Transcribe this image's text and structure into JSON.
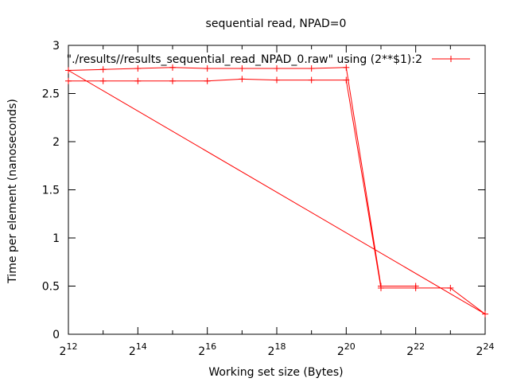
{
  "chart_data": {
    "type": "line",
    "title": "sequential read, NPAD=0",
    "xlabel": "Working set size (Bytes)",
    "ylabel": "Time per element (nanoseconds)",
    "xscale": "log2",
    "xlim_exp": [
      12,
      24
    ],
    "ylim": [
      0,
      3
    ],
    "x_tick_base": "2",
    "x_tick_exponents": [
      "12",
      "14",
      "16",
      "18",
      "20",
      "22",
      "24"
    ],
    "y_ticks": [
      "0",
      "0.5",
      "1",
      "1.5",
      "2",
      "2.5",
      "3"
    ],
    "grid": false,
    "legend_position": "top-right",
    "series": [
      {
        "name": "\"./results//results_sequential_read_NPAD_0.raw\" using (2**$1):2",
        "color": "#ff0000",
        "x_exp": [
          12,
          13,
          14,
          15,
          16,
          17,
          18,
          19,
          20,
          21,
          22,
          23,
          24,
          12,
          13,
          14,
          15,
          16,
          17,
          18,
          19,
          20,
          21,
          22
        ],
        "y": [
          2.63,
          2.63,
          2.63,
          2.63,
          2.63,
          2.65,
          2.64,
          2.64,
          2.64,
          0.48,
          0.48,
          0.48,
          0.21,
          2.74,
          2.75,
          2.76,
          2.77,
          2.76,
          2.76,
          2.76,
          2.76,
          2.77,
          0.5,
          0.5
        ]
      }
    ]
  }
}
